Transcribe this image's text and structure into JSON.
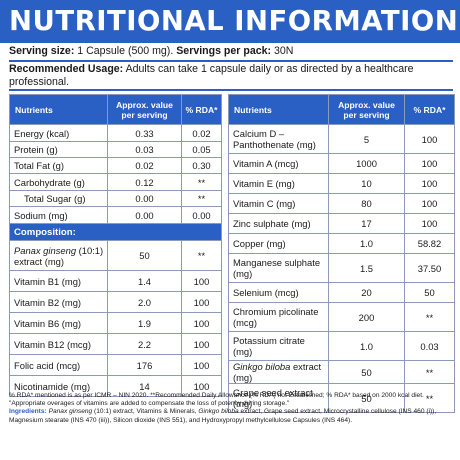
{
  "title": "NUTRITIONAL INFORMATION",
  "serving": {
    "size_label": "Serving size:",
    "size_value": " 1 Capsule (500 mg). ",
    "per_pack_label": "Servings per pack:",
    "per_pack_value": " 30N"
  },
  "usage": {
    "label": "Recommended Usage:",
    "text": " Adults can take 1 capsule daily or as directed by a healthcare professional."
  },
  "left_table": {
    "headers": [
      "Nutrients",
      "Approx. value per serving",
      "% RDA*"
    ],
    "rows": [
      {
        "name": "Energy (kcal)",
        "value": "0.33",
        "rda": "0.02"
      },
      {
        "name": "Protein (g)",
        "value": "0.03",
        "rda": "0.05"
      },
      {
        "name": "Total Fat (g)",
        "value": "0.02",
        "rda": "0.30"
      },
      {
        "name": "Carbohydrate (g)",
        "value": "0.12",
        "rda": "**"
      },
      {
        "name": "Total Sugar (g)",
        "value": "0.00",
        "rda": "**"
      },
      {
        "name": "Sodium (mg)",
        "value": "0.00",
        "rda": "0.00"
      }
    ],
    "section": "Composition:",
    "composition": [
      {
        "name_italic": "Panax ginseng",
        "name_rest": " (10:1) extract (mg)",
        "value": "50",
        "rda": "**"
      },
      {
        "name": "Vitamin B1 (mg)",
        "value": "1.4",
        "rda": "100"
      },
      {
        "name": "Vitamin B2 (mg)",
        "value": "2.0",
        "rda": "100"
      },
      {
        "name": "Vitamin B6 (mg)",
        "value": "1.9",
        "rda": "100"
      },
      {
        "name": "Vitamin B12 (mcg)",
        "value": "2.2",
        "rda": "100"
      },
      {
        "name": "Folic acid (mcg)",
        "value": "176",
        "rda": "100"
      },
      {
        "name": "Nicotinamide (mg)",
        "value": "14",
        "rda": "100"
      }
    ]
  },
  "right_table": {
    "headers": [
      "Nutrients",
      "Approx. value per serving",
      "% RDA*"
    ],
    "rows": [
      {
        "name": "Calcium D – Panthothenate (mg)",
        "value": "5",
        "rda": "100"
      },
      {
        "name": "Vitamin A (mcg)",
        "value": "1000",
        "rda": "100"
      },
      {
        "name": "Vitamin E (mg)",
        "value": "10",
        "rda": "100"
      },
      {
        "name": "Vitamin C (mg)",
        "value": "80",
        "rda": "100"
      },
      {
        "name": "Zinc sulphate (mg)",
        "value": "17",
        "rda": "100"
      },
      {
        "name": "Copper (mg)",
        "value": "1.0",
        "rda": "58.82"
      },
      {
        "name": "Manganese sulphate (mg)",
        "value": "1.5",
        "rda": "37.50"
      },
      {
        "name": "Selenium (mcg)",
        "value": "20",
        "rda": "50"
      },
      {
        "name": "Chromium picolinate (mcg)",
        "value": "200",
        "rda": "**"
      },
      {
        "name": "Potassium citrate (mg)",
        "value": "1.0",
        "rda": "0.03"
      },
      {
        "name_italic": "Ginkgo biloba",
        "name_rest": " extract (mg)",
        "value": "50",
        "rda": "**"
      },
      {
        "name": "Grape seed extract (mg)",
        "value": "50",
        "rda": "**"
      }
    ]
  },
  "footer": {
    "note": "% RDA* mentioned is as per ICMR – NIN 2020. **Recommended Daily Allowance (% RDA) not Established; % RDA* based on 2000 kcal diet. \"Appropriate overages of vitamins are added to compensate the loss of potency during storage.\"",
    "ingredients_label": "Ingredients:",
    "ingredients_italic": " Panax ginseng",
    "ingredients_mid": " (10:1) extract, Vitamins & Minerals, ",
    "ingredients_italic2": "Ginkgo biloba",
    "ingredients_rest": " extract, Grape seed extract, Microcrystalline cellulose (INS 460 (i)), Magnesium stearate (INS 470 (iii)), Silicon dioxide (INS 551), and Hydroxypropyl methylcellulose Capsules (INS 464)."
  },
  "colors": {
    "accent": "#2a5fc4",
    "border": "#8a9ab8"
  }
}
